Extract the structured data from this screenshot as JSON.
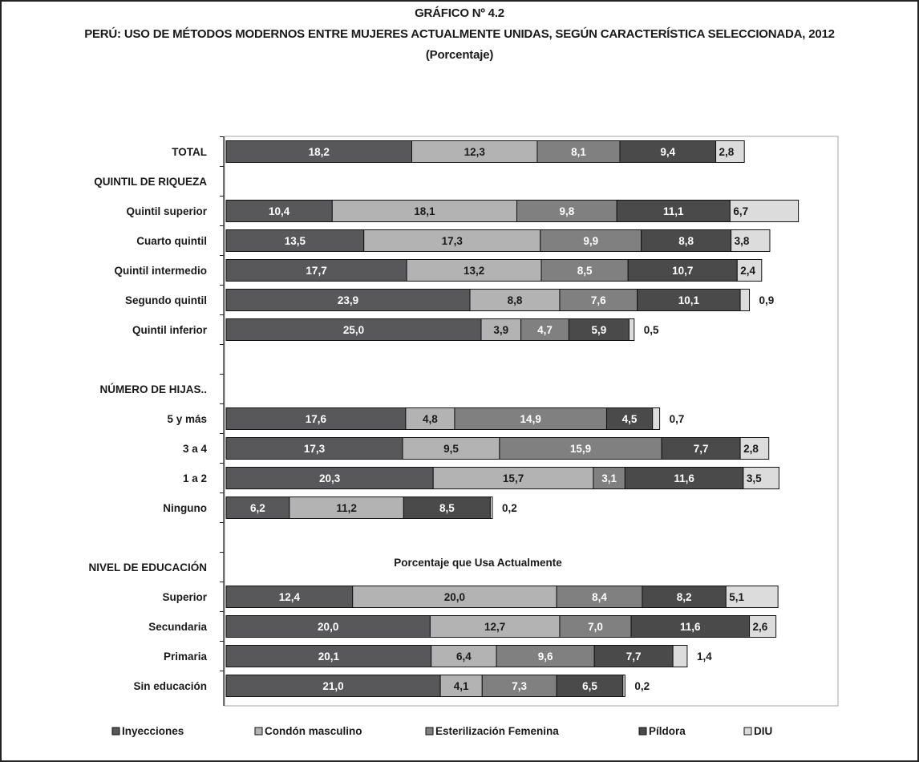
{
  "chart_data": {
    "type": "bar",
    "stacked": true,
    "orientation": "horizontal",
    "title": "GRÁFICO Nº 4.2",
    "subtitle": "PERÚ: USO DE MÉTODOS MODERNOS ENTRE MUJERES ACTUALMENTE UNIDAS, SEGÚN CARACTERÍSTICA SELECCIONADA, 2012",
    "unit": "(Porcentaje)",
    "annotation": "Porcentaje que Usa Actualmente",
    "legend_position": "bottom",
    "grid": false,
    "xlim": [
      0,
      50
    ],
    "series": [
      {
        "name": "Inyecciones",
        "color": "#58585a"
      },
      {
        "name": "Condón masculino",
        "color": "#b3b3b3"
      },
      {
        "name": "Esterilización Femenina",
        "color": "#808080"
      },
      {
        "name": "Píldora",
        "color": "#4a4a4a"
      },
      {
        "name": "DIU",
        "color": "#dcdcdc"
      }
    ],
    "rows": [
      {
        "label": "TOTAL",
        "values": [
          18.2,
          12.3,
          8.1,
          9.4,
          2.8
        ],
        "labels": [
          "18,2",
          "12,3",
          "8,1",
          "9,4",
          "2,8"
        ]
      },
      {
        "label": "QUINTIL DE RIQUEZA",
        "heading": true
      },
      {
        "label": "Quintil superior",
        "values": [
          10.4,
          18.1,
          9.8,
          11.1,
          6.7
        ],
        "labels": [
          "10,4",
          "18,1",
          "9,8",
          "11,1",
          "6,7"
        ]
      },
      {
        "label": "Cuarto quintil",
        "values": [
          13.5,
          17.3,
          9.9,
          8.8,
          3.8
        ],
        "labels": [
          "13,5",
          "17,3",
          "9,9",
          "8,8",
          "3,8"
        ]
      },
      {
        "label": "Quintil intermedio",
        "values": [
          17.7,
          13.2,
          8.5,
          10.7,
          2.4
        ],
        "labels": [
          "17,7",
          "13,2",
          "8,5",
          "10,7",
          "2,4"
        ]
      },
      {
        "label": "Segundo quintil",
        "values": [
          23.9,
          8.8,
          7.6,
          10.1,
          0.9
        ],
        "labels": [
          "23,9",
          "8,8",
          "7,6",
          "10,1",
          "0,9"
        ]
      },
      {
        "label": "Quintil inferior",
        "values": [
          25.0,
          3.9,
          4.7,
          5.9,
          0.5
        ],
        "labels": [
          "25,0",
          "3,9",
          "4,7",
          "5,9",
          "0,5"
        ]
      },
      {
        "label": "",
        "spacer": true
      },
      {
        "label": "NÚMERO DE HIJAS..",
        "heading": true
      },
      {
        "label": "5 y más",
        "values": [
          17.6,
          4.8,
          14.9,
          4.5,
          0.7
        ],
        "labels": [
          "17,6",
          "4,8",
          "14,9",
          "4,5",
          "0,7"
        ]
      },
      {
        "label": "3 a 4",
        "values": [
          17.3,
          9.5,
          15.9,
          7.7,
          2.8
        ],
        "labels": [
          "17,3",
          "9,5",
          "15,9",
          "7,7",
          "2,8"
        ]
      },
      {
        "label": "1 a 2",
        "values": [
          20.3,
          15.7,
          3.1,
          11.6,
          3.5
        ],
        "labels": [
          "20,3",
          "15,7",
          "3,1",
          "11,6",
          "3,5"
        ]
      },
      {
        "label": "Ninguno",
        "values": [
          6.2,
          11.2,
          0,
          8.5,
          0.2
        ],
        "labels": [
          "6,2",
          "11,2",
          "",
          "8,5",
          "0,2"
        ]
      },
      {
        "label": "",
        "spacer": true
      },
      {
        "label": "NIVEL DE EDUCACIÓN",
        "heading": true
      },
      {
        "label": "Superior",
        "values": [
          12.4,
          20.0,
          8.4,
          8.2,
          5.1
        ],
        "labels": [
          "12,4",
          "20,0",
          "8,4",
          "8,2",
          "5,1"
        ]
      },
      {
        "label": "Secundaria",
        "values": [
          20.0,
          12.7,
          7.0,
          11.6,
          2.6
        ],
        "labels": [
          "20,0",
          "12,7",
          "7,0",
          "11,6",
          "2,6"
        ]
      },
      {
        "label": "Primaria",
        "values": [
          20.1,
          6.4,
          9.6,
          7.7,
          1.4
        ],
        "labels": [
          "20,1",
          "6,4",
          "9,6",
          "7,7",
          "1,4"
        ]
      },
      {
        "label": "Sin educación",
        "values": [
          21.0,
          4.1,
          7.3,
          6.5,
          0.2
        ],
        "labels": [
          "21,0",
          "4,1",
          "7,3",
          "6,5",
          "0,2"
        ]
      }
    ]
  }
}
